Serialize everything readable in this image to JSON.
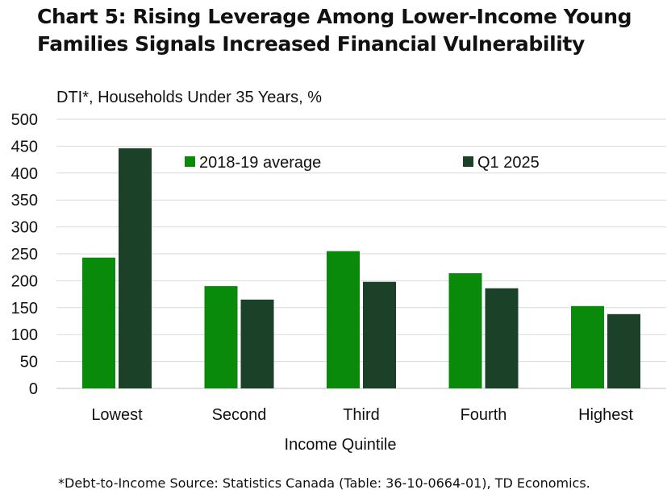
{
  "title": "Chart 5: Rising Leverage Among Lower-Income Young Families Signals Increased Financial Vulnerability",
  "subtitle": "DTI*, Households Under 35 Years, %",
  "source": "*Debt-to-Income Source: Statistics Canada (Table: 36-10-0664-01), TD Economics.",
  "colors": {
    "series1": "#0a8a0a",
    "series2": "#1b4128",
    "grid": "#d9d9d9"
  },
  "chart_data": {
    "type": "bar",
    "title": "Chart 5: Rising Leverage Among Lower-Income Young Families Signals Increased Financial Vulnerability",
    "ylabel": "DTI*, Households Under 35 Years, %",
    "xlabel": "Income Quintile",
    "categories": [
      "Lowest",
      "Second",
      "Third",
      "Fourth",
      "Highest"
    ],
    "ylim": [
      0,
      500
    ],
    "yticks": [
      0,
      50,
      100,
      150,
      200,
      250,
      300,
      350,
      400,
      450,
      500
    ],
    "grid": true,
    "legend": "top-center",
    "series": [
      {
        "name": "2018-19 average",
        "values": [
          243,
          190,
          255,
          214,
          153
        ]
      },
      {
        "name": "Q1 2025",
        "values": [
          446,
          165,
          198,
          186,
          138
        ]
      }
    ]
  }
}
